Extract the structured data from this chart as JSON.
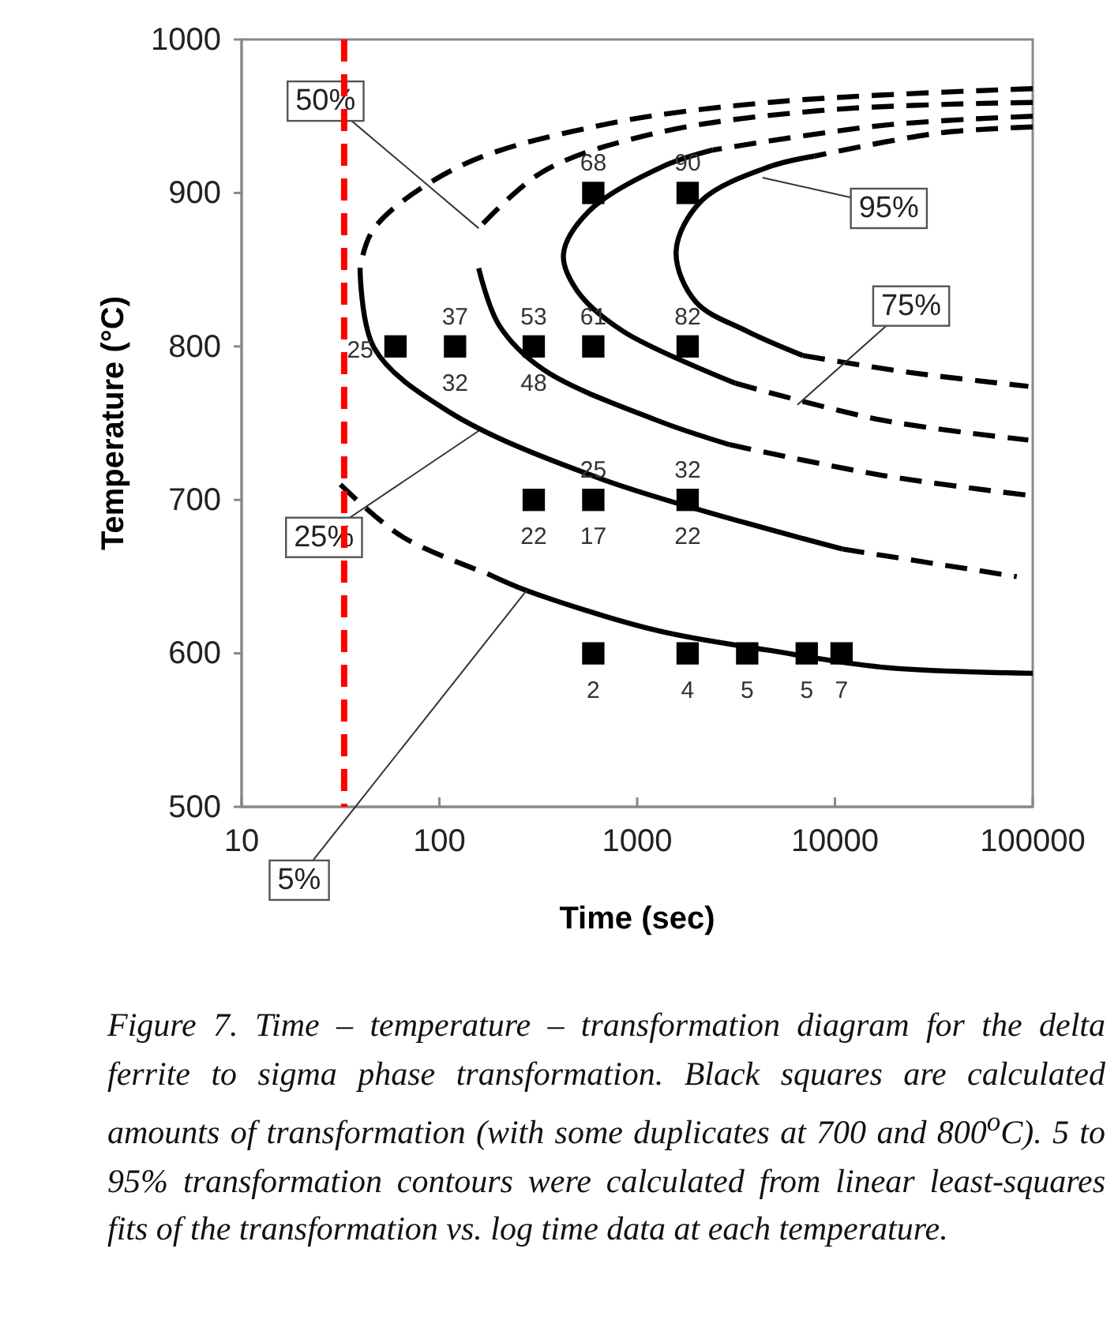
{
  "chart_data": {
    "type": "scatter",
    "xlabel": "Time (sec)",
    "ylabel": "Temperature (°C)",
    "log": "x",
    "xlim": [
      10,
      100000
    ],
    "xticks": [
      10,
      100,
      1000,
      10000,
      100000
    ],
    "ylim": [
      500,
      1000
    ],
    "yticks": [
      500,
      600,
      700,
      800,
      900,
      1000
    ],
    "grid": false,
    "ref_lines": [
      {
        "axis": "x",
        "value": 33,
        "color": "#ff0000",
        "line_style": "dashed"
      }
    ],
    "series": [
      {
        "type": "line",
        "color": "#000000",
        "line_style": "dashed",
        "marker": "none",
        "x": [
          31.6,
          65,
          175
        ],
        "values": [
          710,
          676,
          652
        ]
      },
      {
        "type": "line",
        "color": "#000000",
        "line_style": "solid",
        "marker": "none",
        "x": [
          175,
          276,
          1250,
          4640,
          17300,
          100000
        ],
        "values": [
          652,
          641,
          615,
          602,
          591,
          587
        ]
      },
      {
        "type": "line",
        "color": "#000000",
        "line_style": "dashed",
        "marker": "none",
        "x": [
          100000,
          4640,
          648,
          125,
          46.8,
          39.7
        ],
        "values": [
          968,
          959,
          944,
          917,
          877,
          851
        ]
      },
      {
        "type": "line",
        "color": "#000000",
        "line_style": "solid",
        "marker": "none",
        "x": [
          39.7,
          46.8,
          110,
          648,
          10900
        ],
        "values": [
          851,
          799,
          758,
          714,
          668
        ]
      },
      {
        "type": "line",
        "color": "#000000",
        "line_style": "dashed",
        "marker": "none",
        "x": [
          10900,
          83000
        ],
        "values": [
          668,
          650
        ]
      },
      {
        "type": "line",
        "color": "#000000",
        "line_style": "dashed",
        "marker": "none",
        "x": [
          100000,
          9000,
          1250,
          335,
          158
        ],
        "values": [
          959,
          954,
          939,
          914,
          877
        ]
      },
      {
        "type": "line",
        "color": "#000000",
        "line_style": "solid",
        "marker": "none",
        "x": [
          158,
          200,
          335,
          1250,
          2930
        ],
        "values": [
          851,
          814,
          785,
          752,
          736
        ]
      },
      {
        "type": "line",
        "color": "#000000",
        "line_style": "dashed",
        "marker": "none",
        "x": [
          2930,
          17300,
          95000
        ],
        "values": [
          736,
          716,
          703
        ]
      },
      {
        "type": "line",
        "color": "#000000",
        "line_style": "dashed",
        "marker": "none",
        "x": [
          100000,
          17300,
          2415
        ],
        "values": [
          950,
          944,
          928
        ]
      },
      {
        "type": "line",
        "color": "#000000",
        "line_style": "solid",
        "marker": "none",
        "x": [
          2415,
          1336,
          569,
          424,
          499,
          846,
          3140
        ],
        "values": [
          928,
          917,
          888,
          860,
          836,
          810,
          776
        ]
      },
      {
        "type": "line",
        "color": "#000000",
        "line_style": "dashed",
        "marker": "none",
        "x": [
          3140,
          17300,
          95000
        ],
        "values": [
          776,
          752,
          739
        ]
      },
      {
        "type": "line",
        "color": "#000000",
        "line_style": "dashed",
        "marker": "none",
        "x": [
          100000,
          33300,
          7870
        ],
        "values": [
          943,
          939,
          924
        ]
      },
      {
        "type": "line",
        "color": "#000000",
        "line_style": "solid",
        "marker": "none",
        "x": [
          7870,
          4640,
          2118,
          1574,
          1980,
          3580,
          6900
        ],
        "values": [
          924,
          917,
          895,
          862,
          829,
          810,
          794
        ]
      },
      {
        "type": "line",
        "color": "#000000",
        "line_style": "dashed",
        "marker": "none",
        "x": [
          6900,
          24000,
          95000
        ],
        "values": [
          794,
          783,
          774
        ]
      },
      {
        "color": "#000000",
        "marker": "square",
        "x": [
          60,
          120,
          300,
          600,
          1800,
          600,
          1800,
          300,
          600,
          1800,
          600,
          1800,
          3600,
          7200,
          10800
        ],
        "values": [
          800,
          800,
          800,
          800,
          800,
          900,
          900,
          700,
          700,
          700,
          600,
          600,
          600,
          600,
          600
        ]
      }
    ],
    "annotations": [
      {
        "text": "5%",
        "x": 276,
        "y": 641
      },
      {
        "text": "25%",
        "x": 158,
        "y": 745
      },
      {
        "text": "50%",
        "x": 158,
        "y": 877
      },
      {
        "text": "75%",
        "x": 6460,
        "y": 762
      },
      {
        "text": "95%",
        "x": 4300,
        "y": 910
      },
      {
        "text": "37",
        "x": 120,
        "y": 800
      },
      {
        "text": "53",
        "x": 300,
        "y": 800
      },
      {
        "text": "61",
        "x": 600,
        "y": 800
      },
      {
        "text": "82",
        "x": 1800,
        "y": 800
      },
      {
        "text": "68",
        "x": 600,
        "y": 900
      },
      {
        "text": "90",
        "x": 1800,
        "y": 900
      },
      {
        "text": "25",
        "x": 600,
        "y": 700
      },
      {
        "text": "32",
        "x": 1800,
        "y": 700
      },
      {
        "text": "32",
        "x": 120,
        "y": 800
      },
      {
        "text": "48",
        "x": 300,
        "y": 800
      },
      {
        "text": "22",
        "x": 300,
        "y": 700
      },
      {
        "text": "17",
        "x": 600,
        "y": 700
      },
      {
        "text": "22",
        "x": 1800,
        "y": 700
      },
      {
        "text": "2",
        "x": 600,
        "y": 600
      },
      {
        "text": "4",
        "x": 1800,
        "y": 600
      },
      {
        "text": "5",
        "x": 3600,
        "y": 600
      },
      {
        "text": "5",
        "x": 7200,
        "y": 600
      },
      {
        "text": "7",
        "x": 10800,
        "y": 600
      },
      {
        "text": "25",
        "x": 60,
        "y": 800
      },
      "Figure 7. Time – temperature – transformation diagram for the delta ferrite to sigma phase transformation. Black squares are calculated amounts of transformation (with some duplicates at 700 and 800$^{o}$C). 5 to 95% transformation contours were calculated from linear least-squares fits of the transformation vs. log time data at each temperature."
    ]
  }
}
